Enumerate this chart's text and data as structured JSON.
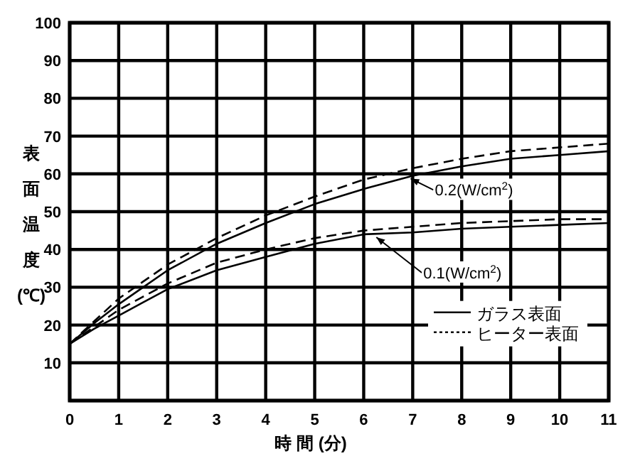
{
  "chart_data": {
    "type": "line",
    "xlabel": "時 間 (分)",
    "ylabel": "表面温度(℃)",
    "xlim": [
      0,
      11
    ],
    "ylim": [
      0,
      100
    ],
    "xticks": [
      0,
      1,
      2,
      3,
      4,
      5,
      6,
      7,
      8,
      9,
      10,
      11
    ],
    "yticks": [
      {
        "value": 0,
        "label": null
      },
      10,
      20,
      30,
      40,
      50,
      60,
      70,
      80,
      90,
      100
    ],
    "grid": true,
    "legend": "bottom right",
    "marker": "none",
    "x": [
      0,
      0.5,
      1,
      1.5,
      2,
      3,
      4,
      5,
      6,
      7,
      8,
      9,
      10,
      11
    ],
    "series": [
      {
        "name": "ガラス表面",
        "color": "#000000",
        "line_style": "solid",
        "values": [
          15,
          20.5,
          25.5,
          30,
          34.5,
          41.5,
          47,
          52,
          56,
          59.5,
          62,
          64,
          65,
          66
        ]
      },
      {
        "name": "ヒーター表面",
        "color": "#000000",
        "line_style": "dashed",
        "values": [
          15,
          21,
          27,
          31.5,
          36,
          43,
          49,
          54,
          58.5,
          61.5,
          64,
          66,
          67,
          68
        ]
      },
      {
        "color": "#000000",
        "line_style": "solid",
        "values": [
          15,
          19,
          22.5,
          26,
          29.5,
          34.5,
          38,
          41.5,
          44,
          44.5,
          45.5,
          46,
          46.5,
          47
        ]
      },
      {
        "color": "#000000",
        "line_style": "dashed",
        "values": [
          15,
          19.5,
          24,
          27.5,
          31,
          36.5,
          40,
          43,
          45,
          46,
          47,
          47.5,
          48,
          48
        ]
      }
    ],
    "annotations": [
      {
        "text": "0.2(W/cm$^{2}$)",
        "x": 6.9,
        "y": 59.5
      },
      {
        "text": "0.1(W/cm$^{2}$)",
        "x": 6.2,
        "y": 44
      }
    ]
  }
}
